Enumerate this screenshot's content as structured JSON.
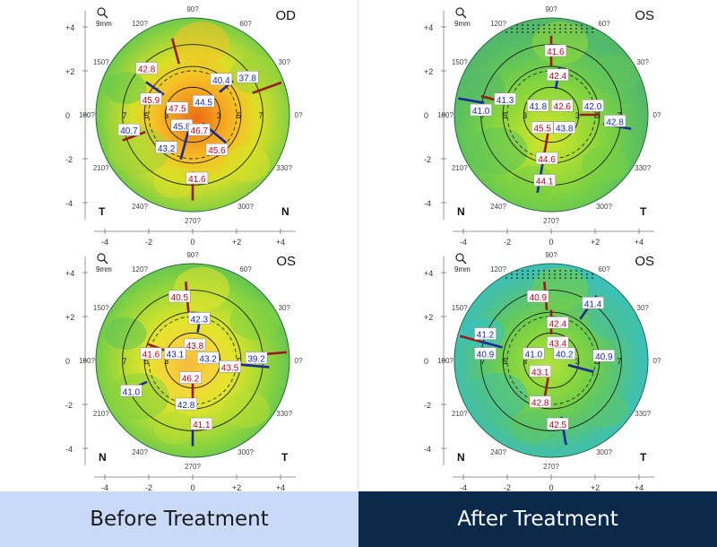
{
  "axis": {
    "ticks": [
      "+4",
      "+2",
      "0",
      "-2",
      "-4"
    ],
    "xticks": [
      "-4",
      "-2",
      "0",
      "+2",
      "+4"
    ],
    "deg_top": "90?",
    "deg_bottom": "270?",
    "deg_60": "60?",
    "deg_30": "30?",
    "deg_330": "330?",
    "deg_300": "300?",
    "deg_240": "240?",
    "deg_210": "210?",
    "deg_150": "150?",
    "deg_120": "120?",
    "deg_0": "0?",
    "deg_180": "180?",
    "scale": "9mm"
  },
  "rings": [
    "3",
    "5",
    "7"
  ],
  "maps": [
    {
      "id": "before-od",
      "eye": "OD",
      "left_corner": "T",
      "right_corner": "N",
      "palette": "hot",
      "labels": [
        {
          "text": "42.8",
          "c": "red"
        },
        {
          "text": "40.4",
          "c": "blue"
        },
        {
          "text": "37.8",
          "c": "blue"
        },
        {
          "text": "45.9",
          "c": "red"
        },
        {
          "text": "47.5",
          "c": "red"
        },
        {
          "text": "44.5",
          "c": "blue"
        },
        {
          "text": "45.8",
          "c": "blue"
        },
        {
          "text": "46.7",
          "c": "red"
        },
        {
          "text": "40.7",
          "c": "blue"
        },
        {
          "text": "43.2",
          "c": "blue"
        },
        {
          "text": "45.6",
          "c": "red"
        },
        {
          "text": "41.6",
          "c": "red"
        }
      ]
    },
    {
      "id": "after-os-1",
      "eye": "OS",
      "left_corner": "N",
      "right_corner": "T",
      "palette": "green",
      "labels": [
        {
          "text": "41.6",
          "c": "red"
        },
        {
          "text": "42.4",
          "c": "red"
        },
        {
          "text": "41.3",
          "c": "blue"
        },
        {
          "text": "41.0",
          "c": "blue"
        },
        {
          "text": "41.8",
          "c": "blue"
        },
        {
          "text": "42.6",
          "c": "red"
        },
        {
          "text": "42.0",
          "c": "blue"
        },
        {
          "text": "42.8",
          "c": "blue"
        },
        {
          "text": "45.5",
          "c": "red"
        },
        {
          "text": "43.8",
          "c": "blue"
        },
        {
          "text": "44.6",
          "c": "red"
        },
        {
          "text": "44.1",
          "c": "red"
        }
      ]
    },
    {
      "id": "before-os",
      "eye": "OS",
      "left_corner": "N",
      "right_corner": "T",
      "palette": "warm",
      "labels": [
        {
          "text": "40.5",
          "c": "red"
        },
        {
          "text": "42.3",
          "c": "blue"
        },
        {
          "text": "43.8",
          "c": "red"
        },
        {
          "text": "41.6",
          "c": "red"
        },
        {
          "text": "43.1",
          "c": "blue"
        },
        {
          "text": "43.2",
          "c": "blue"
        },
        {
          "text": "43.5",
          "c": "red"
        },
        {
          "text": "39.2",
          "c": "blue"
        },
        {
          "text": "46.2",
          "c": "red"
        },
        {
          "text": "41.0",
          "c": "blue"
        },
        {
          "text": "42.8",
          "c": "blue"
        },
        {
          "text": "41.1",
          "c": "red"
        }
      ]
    },
    {
      "id": "after-os-2",
      "eye": "OS",
      "left_corner": "N",
      "right_corner": "T",
      "palette": "cool",
      "labels": [
        {
          "text": "40.9",
          "c": "red"
        },
        {
          "text": "41.4",
          "c": "blue"
        },
        {
          "text": "42.4",
          "c": "red"
        },
        {
          "text": "41.2",
          "c": "blue"
        },
        {
          "text": "43.4",
          "c": "red"
        },
        {
          "text": "40.9",
          "c": "blue"
        },
        {
          "text": "41.0",
          "c": "blue"
        },
        {
          "text": "40.2",
          "c": "blue"
        },
        {
          "text": "40.9",
          "c": "blue"
        },
        {
          "text": "43.1",
          "c": "red"
        },
        {
          "text": "42.8",
          "c": "red"
        },
        {
          "text": "42.5",
          "c": "red"
        }
      ]
    }
  ],
  "footer": {
    "before": "Before Treatment",
    "after": "After Treatment"
  },
  "colors": {
    "label_red": "#c0001a",
    "label_blue": "#1428b4",
    "footer_left_bg": "#c9daf8",
    "footer_right_bg": "#0b2a4a"
  }
}
